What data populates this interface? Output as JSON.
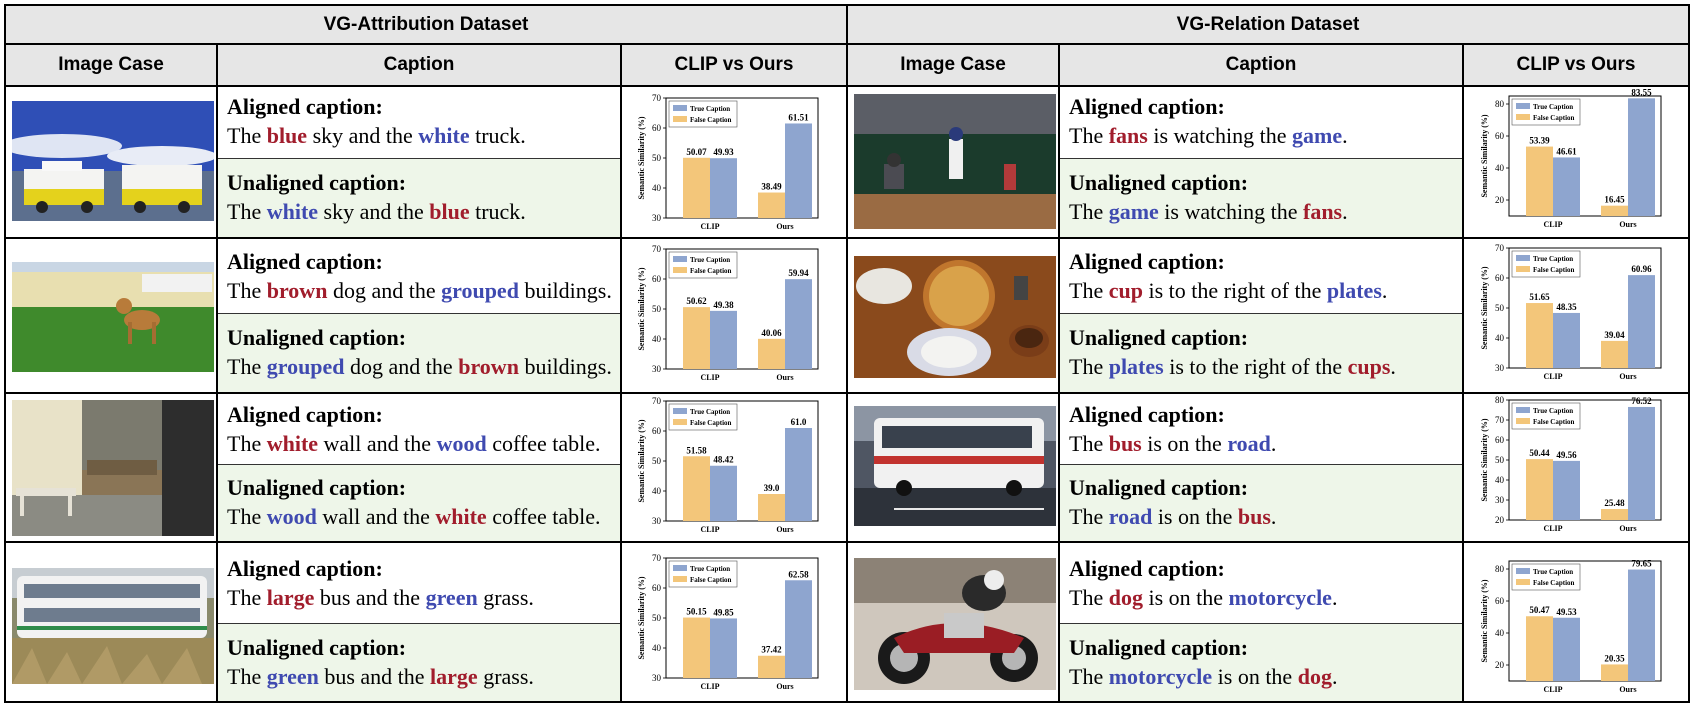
{
  "datasets": [
    {
      "title": "VG-Attribution Dataset",
      "columns": [
        "Image Case",
        "Caption",
        "CLIP vs Ours"
      ],
      "rows": [
        {
          "image": "two yellow amphibious boats under blue sky",
          "aligned_label": "Aligned caption:",
          "aligned": [
            [
              "The ",
              ""
            ],
            [
              "blue",
              "red"
            ],
            [
              " sky and the ",
              ""
            ],
            [
              "white",
              "blue"
            ],
            [
              " truck.",
              ""
            ]
          ],
          "unaligned_label": "Unaligned caption:",
          "unaligned": [
            [
              "The ",
              ""
            ],
            [
              "white",
              "blue"
            ],
            [
              " sky and the ",
              ""
            ],
            [
              "blue",
              "red"
            ],
            [
              " truck.",
              ""
            ]
          ]
        },
        {
          "image": "brown dog in front of grouped buildings",
          "aligned_label": "Aligned caption:",
          "aligned": [
            [
              "The ",
              ""
            ],
            [
              "brown",
              "red"
            ],
            [
              " dog and the ",
              ""
            ],
            [
              "grouped",
              "blue"
            ],
            [
              " buildings.",
              ""
            ]
          ],
          "unaligned_label": "Unaligned caption:",
          "unaligned": [
            [
              "The ",
              ""
            ],
            [
              "grouped",
              "blue"
            ],
            [
              " dog and the ",
              ""
            ],
            [
              "brown",
              "red"
            ],
            [
              " buildings.",
              ""
            ]
          ]
        },
        {
          "image": "living room with sofa and coffee table",
          "aligned_label": "Aligned caption:",
          "aligned": [
            [
              "The ",
              ""
            ],
            [
              "white",
              "red"
            ],
            [
              " wall and the ",
              ""
            ],
            [
              "wood",
              "blue"
            ],
            [
              " coffee table.",
              ""
            ]
          ],
          "unaligned_label": "Unaligned caption:",
          "unaligned": [
            [
              "The ",
              ""
            ],
            [
              "wood",
              "blue"
            ],
            [
              " wall and the ",
              ""
            ],
            [
              "white",
              "red"
            ],
            [
              " coffee table.",
              ""
            ]
          ]
        },
        {
          "image": "double-decker bus in green grass",
          "aligned_label": "Aligned caption:",
          "aligned": [
            [
              "The ",
              ""
            ],
            [
              "large",
              "red"
            ],
            [
              " bus and the ",
              ""
            ],
            [
              "green",
              "blue"
            ],
            [
              " grass.",
              ""
            ]
          ],
          "unaligned_label": "Unaligned caption:",
          "unaligned": [
            [
              "The ",
              ""
            ],
            [
              "green",
              "blue"
            ],
            [
              " bus and the ",
              ""
            ],
            [
              "large",
              "red"
            ],
            [
              " grass.",
              ""
            ]
          ]
        }
      ]
    },
    {
      "title": "VG-Relation Dataset",
      "columns": [
        "Image Case",
        "Caption",
        "CLIP vs Ours"
      ],
      "rows": [
        {
          "image": "baseball batter and catcher",
          "aligned_label": "Aligned caption:",
          "aligned": [
            [
              "The ",
              ""
            ],
            [
              "fans",
              "red"
            ],
            [
              " is watching the ",
              ""
            ],
            [
              "game",
              "blue"
            ],
            [
              ".",
              ""
            ]
          ],
          "unaligned_label": "Unaligned caption:",
          "unaligned": [
            [
              "The ",
              ""
            ],
            [
              "game",
              "blue"
            ],
            [
              " is watching the ",
              ""
            ],
            [
              "fans",
              "red"
            ],
            [
              ".",
              ""
            ]
          ]
        },
        {
          "image": "pizza with plates and cup",
          "aligned_label": "Aligned caption:",
          "aligned": [
            [
              "The ",
              ""
            ],
            [
              "cup",
              "red"
            ],
            [
              " is to the right of the ",
              ""
            ],
            [
              "plates",
              "blue"
            ],
            [
              ".",
              ""
            ]
          ],
          "unaligned_label": "Unaligned caption:",
          "unaligned": [
            [
              "The ",
              ""
            ],
            [
              "plates",
              "blue"
            ],
            [
              " is to the right of the ",
              ""
            ],
            [
              "cups",
              "red"
            ],
            [
              ".",
              ""
            ]
          ]
        },
        {
          "image": "white bus on road",
          "aligned_label": "Aligned caption:",
          "aligned": [
            [
              "The ",
              ""
            ],
            [
              "bus",
              "red"
            ],
            [
              " is on the ",
              ""
            ],
            [
              "road",
              "blue"
            ],
            [
              ".",
              ""
            ]
          ],
          "unaligned_label": "Unaligned caption:",
          "unaligned": [
            [
              "The ",
              ""
            ],
            [
              "road",
              "blue"
            ],
            [
              " is on the ",
              ""
            ],
            [
              "bus",
              "red"
            ],
            [
              ".",
              ""
            ]
          ]
        },
        {
          "image": "dog on a motorcycle",
          "aligned_label": "Aligned caption:",
          "aligned": [
            [
              "The ",
              ""
            ],
            [
              "dog",
              "red"
            ],
            [
              " is on the ",
              ""
            ],
            [
              "motorcycle",
              "blue"
            ],
            [
              ".",
              ""
            ]
          ],
          "unaligned_label": "Unaligned caption:",
          "unaligned": [
            [
              "The ",
              ""
            ],
            [
              "motorcycle",
              "blue"
            ],
            [
              " is on the ",
              ""
            ],
            [
              "dog",
              "red"
            ],
            [
              ".",
              ""
            ]
          ]
        }
      ]
    }
  ],
  "colors": {
    "red_word": "#a11d2c",
    "blue_word": "#3f4ab0",
    "true_bar": "#8ea5cf",
    "false_bar": "#f3c67a",
    "header_bg": "#e6e6e6",
    "unaligned_bg": "#eef6e9"
  },
  "chart_data": [
    {
      "type": "bar",
      "categories": [
        "CLIP",
        "Ours"
      ],
      "ylabel": "Semantic Similarity (%)",
      "ylim": [
        30,
        70
      ],
      "yticks": [
        30,
        40,
        50,
        60,
        70
      ],
      "legend": "top-left",
      "series": [
        {
          "name": "False Caption",
          "values": [
            50.07,
            38.49
          ]
        },
        {
          "name": "True Caption",
          "values": [
            49.93,
            61.51
          ]
        }
      ]
    },
    {
      "type": "bar",
      "categories": [
        "CLIP",
        "Ours"
      ],
      "ylabel": "Semantic Similarity (%)",
      "ylim": [
        30,
        70
      ],
      "yticks": [
        30,
        40,
        50,
        60,
        70
      ],
      "legend": "top-left",
      "series": [
        {
          "name": "False Caption",
          "values": [
            50.62,
            40.06
          ]
        },
        {
          "name": "True Caption",
          "values": [
            49.38,
            59.94
          ]
        }
      ]
    },
    {
      "type": "bar",
      "categories": [
        "CLIP",
        "Ours"
      ],
      "ylabel": "Semantic Similarity (%)",
      "ylim": [
        30,
        70
      ],
      "yticks": [
        30,
        40,
        50,
        60,
        70
      ],
      "legend": "top-left",
      "series": [
        {
          "name": "False Caption",
          "values": [
            51.58,
            39.0
          ]
        },
        {
          "name": "True Caption",
          "values": [
            48.42,
            61.0
          ]
        }
      ],
      "labels": [
        [
          "51.58",
          "39.0"
        ],
        [
          "48.42",
          "61.0"
        ]
      ]
    },
    {
      "type": "bar",
      "categories": [
        "CLIP",
        "Ours"
      ],
      "ylabel": "Semantic Similarity (%)",
      "ylim": [
        30,
        70
      ],
      "yticks": [
        30,
        40,
        50,
        60,
        70
      ],
      "legend": "top-left",
      "series": [
        {
          "name": "False Caption",
          "values": [
            50.15,
            37.42
          ]
        },
        {
          "name": "True Caption",
          "values": [
            49.85,
            62.58
          ]
        }
      ]
    },
    {
      "type": "bar",
      "categories": [
        "CLIP",
        "Ours"
      ],
      "ylabel": "Semantic Similarity (%)",
      "ylim": [
        10,
        85
      ],
      "yticks": [
        20,
        40,
        60,
        80
      ],
      "legend": "top-left",
      "series": [
        {
          "name": "False Caption",
          "values": [
            53.39,
            16.45
          ]
        },
        {
          "name": "True Caption",
          "values": [
            46.61,
            83.55
          ]
        }
      ]
    },
    {
      "type": "bar",
      "categories": [
        "CLIP",
        "Ours"
      ],
      "ylabel": "Semantic Similarity (%)",
      "ylim": [
        30,
        70
      ],
      "yticks": [
        30,
        40,
        50,
        60,
        70
      ],
      "legend": "top-left",
      "series": [
        {
          "name": "False Caption",
          "values": [
            51.65,
            39.04
          ]
        },
        {
          "name": "True Caption",
          "values": [
            48.35,
            60.96
          ]
        }
      ]
    },
    {
      "type": "bar",
      "categories": [
        "CLIP",
        "Ours"
      ],
      "ylabel": "Semantic Similarity (%)",
      "ylim": [
        20,
        80
      ],
      "yticks": [
        20,
        30,
        40,
        50,
        60,
        70,
        80
      ],
      "legend": "top-left",
      "series": [
        {
          "name": "False Caption",
          "values": [
            50.44,
            25.48
          ]
        },
        {
          "name": "True Caption",
          "values": [
            49.56,
            76.52
          ]
        }
      ]
    },
    {
      "type": "bar",
      "categories": [
        "CLIP",
        "Ours"
      ],
      "ylabel": "Semantic Similarity (%)",
      "ylim": [
        10,
        85
      ],
      "yticks": [
        20,
        40,
        60,
        80
      ],
      "legend": "top-left",
      "series": [
        {
          "name": "False Caption",
          "values": [
            50.47,
            20.35
          ]
        },
        {
          "name": "True Caption",
          "values": [
            49.53,
            79.65
          ]
        }
      ]
    }
  ]
}
